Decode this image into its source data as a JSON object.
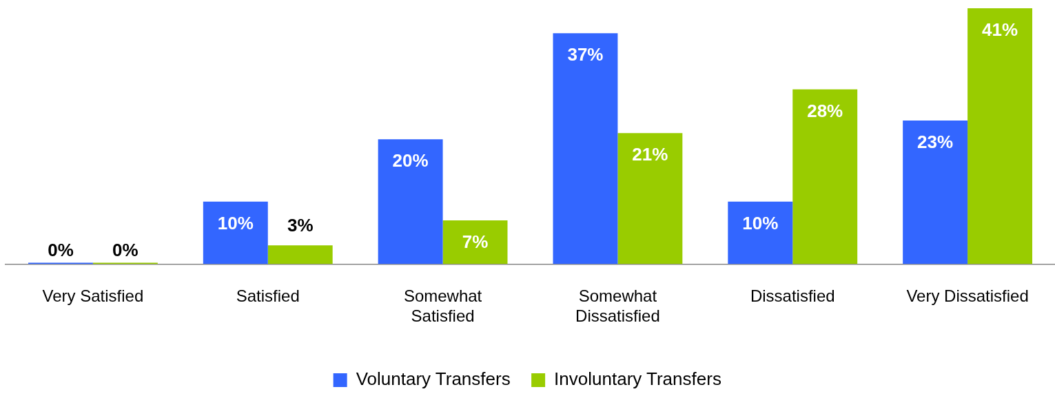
{
  "chart_data": {
    "type": "bar",
    "categories": [
      "Very Satisfied",
      "Satisfied",
      "Somewhat Satisfied",
      "Somewhat Dissatisfied",
      "Dissatisfied",
      "Very Dissatisfied"
    ],
    "series": [
      {
        "name": "Voluntary Transfers",
        "color": "#3366ff",
        "values": [
          0,
          10,
          20,
          37,
          10,
          23
        ],
        "value_labels": [
          "0%",
          "10%",
          "20%",
          "37%",
          "10%",
          "23%"
        ]
      },
      {
        "name": "Involuntary Transfers",
        "color": "#99cc00",
        "values": [
          0,
          3,
          7,
          21,
          28,
          41
        ],
        "value_labels": [
          "0%",
          "3%",
          "7%",
          "21%",
          "28%",
          "41%"
        ]
      }
    ],
    "ylim": [
      0,
      41
    ],
    "grid": false,
    "legend": "bottom"
  }
}
